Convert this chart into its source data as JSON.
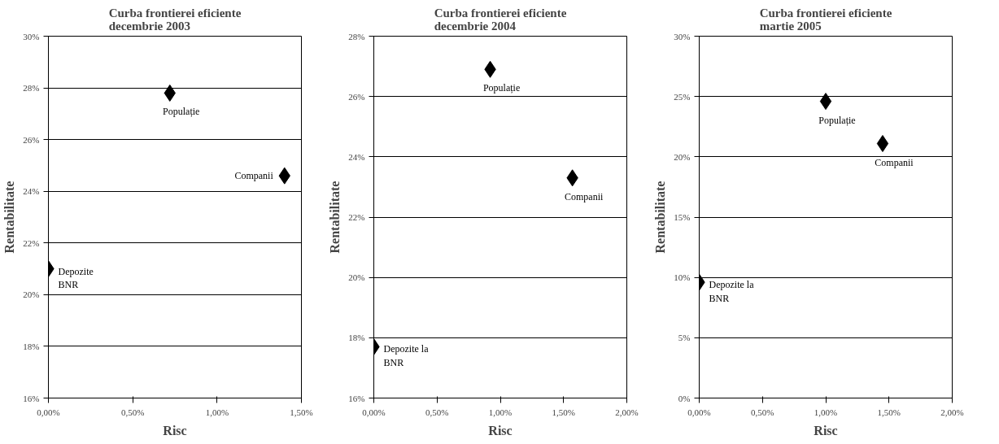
{
  "chart_data": [
    {
      "type": "scatter",
      "title": "Curba frontierei eficiente\ndecembrie 2003",
      "xlabel": "Risc",
      "ylabel": "Rentabilitate",
      "x": [
        0,
        0.72,
        1.4
      ],
      "values": [
        21.0,
        27.8,
        24.6
      ],
      "color": "#000000",
      "marker": "diamond",
      "grid": "y",
      "legend": false,
      "xlim": [
        0,
        1.5
      ],
      "xticks": [
        {
          "value": 0,
          "label": "0,00%"
        },
        {
          "value": 0.5,
          "label": "0,50%"
        },
        {
          "value": 1,
          "label": "1,00%"
        },
        {
          "value": 1.5,
          "label": "1,50%"
        }
      ],
      "ylim": [
        16,
        30
      ],
      "yticks": [
        {
          "value": 16,
          "label": "16%"
        },
        {
          "value": 18,
          "label": "18%"
        },
        {
          "value": 20,
          "label": "20%"
        },
        {
          "value": 22,
          "label": "22%"
        },
        {
          "value": 24,
          "label": "24%"
        },
        {
          "value": 26,
          "label": "26%"
        },
        {
          "value": 28,
          "label": "28%"
        },
        {
          "value": 30,
          "label": "30%"
        }
      ],
      "annotations": [
        {
          "text": "Depozite\nBNR",
          "x": 0,
          "y": 21.0
        },
        {
          "text": "Populație",
          "x": 0.72,
          "y": 27.8
        },
        {
          "text": "Companii",
          "x": 1.4,
          "y": 24.6
        }
      ]
    },
    {
      "type": "scatter",
      "title": "Curba frontierei eficiente\ndecembrie 2004",
      "xlabel": "Risc",
      "ylabel": "Rentabilitate",
      "x": [
        0,
        0.92,
        1.57
      ],
      "values": [
        17.7,
        26.9,
        23.3
      ],
      "color": "#000000",
      "marker": "diamond",
      "grid": "y",
      "legend": false,
      "xlim": [
        0,
        2
      ],
      "xticks": [
        {
          "value": 0,
          "label": "0,00%"
        },
        {
          "value": 0.5,
          "label": "0,50%"
        },
        {
          "value": 1,
          "label": "1,00%"
        },
        {
          "value": 1.5,
          "label": "1,50%"
        },
        {
          "value": 2,
          "label": "2,00%"
        }
      ],
      "ylim": [
        16,
        28
      ],
      "yticks": [
        {
          "value": 16,
          "label": "16%"
        },
        {
          "value": 18,
          "label": "18%"
        },
        {
          "value": 20,
          "label": "20%"
        },
        {
          "value": 22,
          "label": "22%"
        },
        {
          "value": 24,
          "label": "24%"
        },
        {
          "value": 26,
          "label": "26%"
        },
        {
          "value": 28,
          "label": "28%"
        }
      ],
      "annotations": [
        {
          "text": "Depozite la\nBNR",
          "x": 0,
          "y": 17.7
        },
        {
          "text": "Populație",
          "x": 0.92,
          "y": 26.9
        },
        {
          "text": "Companii",
          "x": 1.57,
          "y": 23.3
        }
      ]
    },
    {
      "type": "scatter",
      "title": "Curba frontierei eficiente\nmartie 2005",
      "xlabel": "Risc",
      "ylabel": "Rentabilitate",
      "x": [
        0,
        1.0,
        1.45
      ],
      "values": [
        9.6,
        24.6,
        21.1
      ],
      "color": "#000000",
      "marker": "diamond",
      "grid": "y",
      "legend": false,
      "xlim": [
        0,
        2
      ],
      "xticks": [
        {
          "value": 0,
          "label": "0,00%"
        },
        {
          "value": 0.5,
          "label": "0,50%"
        },
        {
          "value": 1,
          "label": "1,00%"
        },
        {
          "value": 1.5,
          "label": "1,50%"
        },
        {
          "value": 2,
          "label": "2,00%"
        }
      ],
      "ylim": [
        0,
        30
      ],
      "yticks": [
        {
          "value": 0,
          "label": "0%"
        },
        {
          "value": 5,
          "label": "5%"
        },
        {
          "value": 10,
          "label": "10%"
        },
        {
          "value": 15,
          "label": "15%"
        },
        {
          "value": 20,
          "label": "20%"
        },
        {
          "value": 25,
          "label": "25%"
        },
        {
          "value": 30,
          "label": "30%"
        }
      ],
      "annotations": [
        {
          "text": "Depozite la\nBNR",
          "x": 0,
          "y": 9.6
        },
        {
          "text": "Populație",
          "x": 1.0,
          "y": 24.6
        },
        {
          "text": "Companii",
          "x": 1.45,
          "y": 21.1
        }
      ]
    }
  ]
}
